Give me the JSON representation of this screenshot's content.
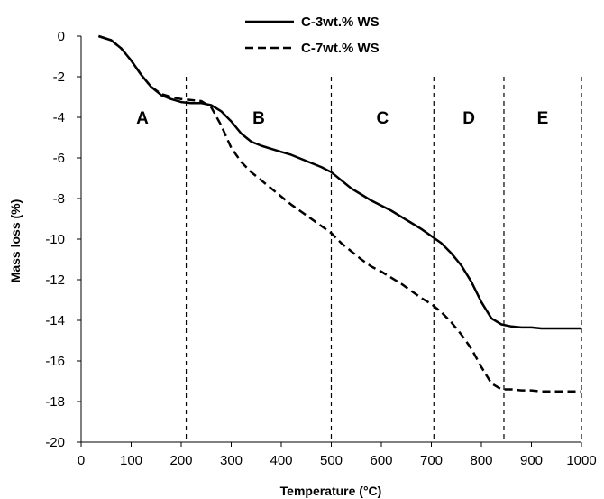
{
  "chart_data": {
    "type": "line",
    "title": "",
    "xlabel": "Temperature (°C)",
    "ylabel": "Mass loss (%)",
    "xlim": [
      0,
      1000
    ],
    "ylim": [
      -20,
      0
    ],
    "xticks": [
      0,
      100,
      200,
      300,
      400,
      500,
      600,
      700,
      800,
      900,
      1000
    ],
    "yticks": [
      0,
      -2,
      -4,
      -6,
      -8,
      -10,
      -12,
      -14,
      -16,
      -18,
      -20
    ],
    "grid": false,
    "legend_position": "top-center",
    "series": [
      {
        "name": "C-3wt.% WS",
        "style": "solid",
        "x": [
          35,
          60,
          80,
          100,
          120,
          140,
          160,
          180,
          200,
          220,
          240,
          260,
          280,
          300,
          320,
          340,
          360,
          380,
          400,
          420,
          440,
          460,
          480,
          500,
          520,
          540,
          560,
          580,
          600,
          620,
          640,
          660,
          680,
          700,
          720,
          740,
          760,
          780,
          800,
          820,
          840,
          860,
          880,
          900,
          920,
          940,
          960,
          980,
          1000
        ],
        "y": [
          0,
          -0.2,
          -0.6,
          -1.2,
          -1.9,
          -2.5,
          -2.9,
          -3.1,
          -3.25,
          -3.3,
          -3.3,
          -3.4,
          -3.7,
          -4.2,
          -4.8,
          -5.2,
          -5.4,
          -5.55,
          -5.7,
          -5.85,
          -6.05,
          -6.25,
          -6.45,
          -6.7,
          -7.1,
          -7.5,
          -7.8,
          -8.1,
          -8.35,
          -8.6,
          -8.9,
          -9.2,
          -9.5,
          -9.85,
          -10.2,
          -10.7,
          -11.3,
          -12.1,
          -13.1,
          -13.9,
          -14.2,
          -14.3,
          -14.35,
          -14.35,
          -14.4,
          -14.4,
          -14.4,
          -14.4,
          -14.4
        ]
      },
      {
        "name": "C-7wt.% WS",
        "style": "dashed",
        "x": [
          35,
          60,
          80,
          100,
          120,
          140,
          160,
          180,
          200,
          220,
          240,
          260,
          280,
          300,
          320,
          340,
          360,
          380,
          400,
          420,
          440,
          460,
          480,
          500,
          520,
          540,
          560,
          580,
          600,
          620,
          640,
          660,
          680,
          700,
          720,
          740,
          760,
          780,
          800,
          820,
          840,
          860,
          880,
          900,
          920,
          940,
          960,
          980,
          1000
        ],
        "y": [
          0,
          -0.2,
          -0.6,
          -1.2,
          -1.9,
          -2.5,
          -2.85,
          -3.0,
          -3.1,
          -3.15,
          -3.2,
          -3.5,
          -4.4,
          -5.5,
          -6.2,
          -6.7,
          -7.1,
          -7.5,
          -7.9,
          -8.3,
          -8.65,
          -9.0,
          -9.35,
          -9.7,
          -10.2,
          -10.6,
          -11.0,
          -11.35,
          -11.6,
          -11.9,
          -12.2,
          -12.55,
          -12.9,
          -13.2,
          -13.6,
          -14.1,
          -14.7,
          -15.4,
          -16.3,
          -17.1,
          -17.4,
          -17.4,
          -17.45,
          -17.45,
          -17.5,
          -17.5,
          -17.5,
          -17.5,
          -17.5
        ]
      }
    ],
    "regions": [
      {
        "label": "A",
        "from": 35,
        "to": 210
      },
      {
        "label": "B",
        "from": 210,
        "to": 500
      },
      {
        "label": "C",
        "from": 500,
        "to": 705
      },
      {
        "label": "D",
        "from": 705,
        "to": 845
      },
      {
        "label": "E",
        "from": 845,
        "to": 1000
      }
    ],
    "region_boundaries": [
      210,
      500,
      705,
      845,
      1000
    ]
  }
}
